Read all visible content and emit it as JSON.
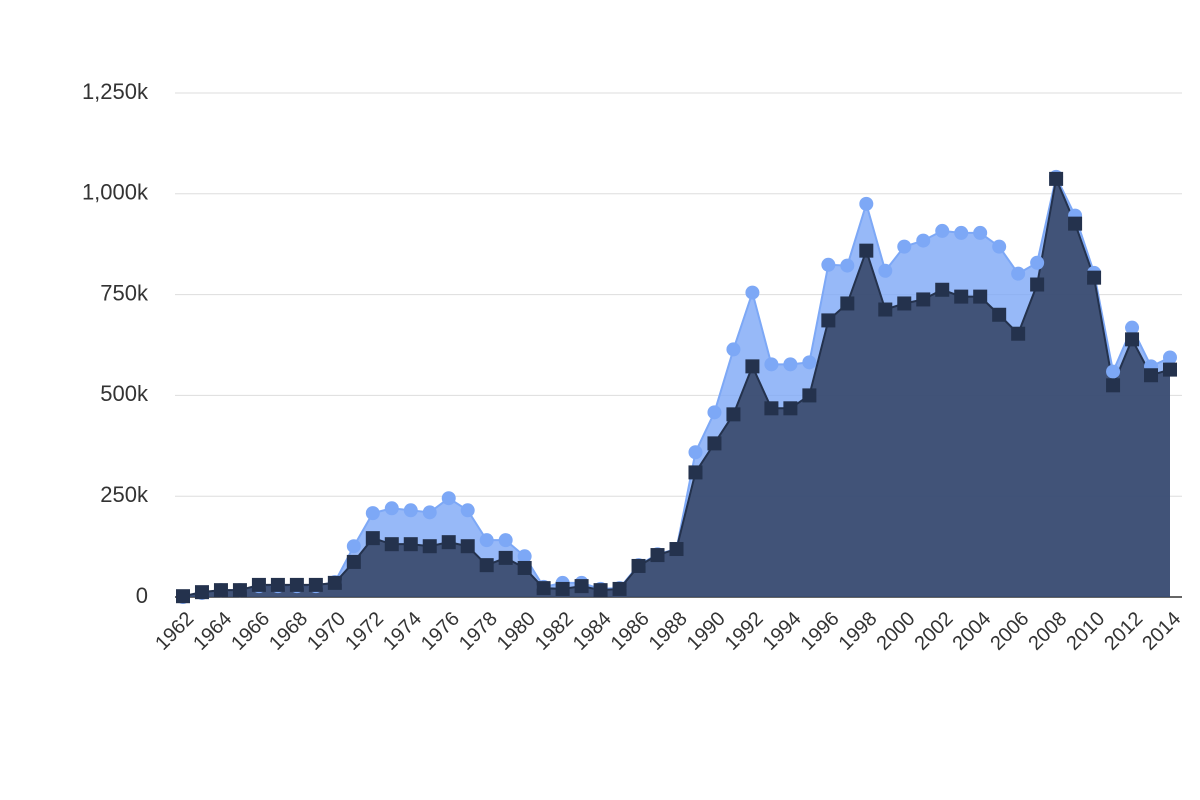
{
  "chart_data": {
    "type": "area",
    "x": [
      1962,
      1963,
      1964,
      1965,
      1966,
      1967,
      1968,
      1969,
      1970,
      1971,
      1972,
      1973,
      1974,
      1975,
      1976,
      1977,
      1978,
      1979,
      1980,
      1981,
      1982,
      1983,
      1984,
      1985,
      1986,
      1987,
      1988,
      1989,
      1990,
      1991,
      1992,
      1993,
      1994,
      1995,
      1996,
      1997,
      1998,
      1999,
      2000,
      2001,
      2002,
      2003,
      2004,
      2005,
      2006,
      2007,
      2008,
      2009,
      2010,
      2011,
      2012,
      2013,
      2014
    ],
    "series": [
      {
        "color": "#7da8f6",
        "marker": "circle",
        "values": [
          0,
          10000,
          17000,
          17000,
          27000,
          27000,
          27000,
          27000,
          37000,
          126000,
          208000,
          220000,
          215000,
          210000,
          245000,
          215000,
          141000,
          141000,
          101000,
          25000,
          35000,
          35000,
          20000,
          22000,
          79000,
          106000,
          119000,
          359000,
          458000,
          614000,
          755000,
          577000,
          577000,
          582000,
          824000,
          822000,
          975000,
          809000,
          869000,
          884000,
          908000,
          903000,
          903000,
          869000,
          802000,
          829000,
          1042000,
          946000,
          804000,
          559000,
          668000,
          572000,
          594000
        ]
      },
      {
        "color": "#24324d",
        "marker": "square",
        "values": [
          2000,
          12000,
          17000,
          17000,
          30000,
          30000,
          30000,
          30000,
          35000,
          87000,
          146000,
          131000,
          131000,
          126000,
          136000,
          126000,
          79000,
          97000,
          72000,
          22000,
          20000,
          27000,
          17000,
          20000,
          77000,
          104000,
          119000,
          309000,
          381000,
          453000,
          572000,
          468000,
          468000,
          500000,
          686000,
          728000,
          859000,
          713000,
          728000,
          738000,
          762000,
          745000,
          745000,
          700000,
          653000,
          775000,
          1037000,
          926000,
          792000,
          525000,
          639000,
          550000,
          564000
        ]
      }
    ],
    "xlim": [
      1962,
      2014
    ],
    "xticks": [
      1962,
      1964,
      1966,
      1968,
      1970,
      1972,
      1974,
      1976,
      1978,
      1980,
      1982,
      1984,
      1986,
      1988,
      1990,
      1992,
      1994,
      1996,
      1998,
      2000,
      2002,
      2004,
      2006,
      2008,
      2010,
      2012,
      2014
    ],
    "ylim": [
      0,
      1250000
    ],
    "yticks": [
      0,
      {
        "value": 250000,
        "label": "250k"
      },
      {
        "value": 500000,
        "label": "500k"
      },
      {
        "value": 750000,
        "label": "750k"
      },
      {
        "value": 1000000,
        "label": "1,000k"
      },
      {
        "value": 1250000,
        "label": "1,250k"
      }
    ],
    "grid": true
  }
}
